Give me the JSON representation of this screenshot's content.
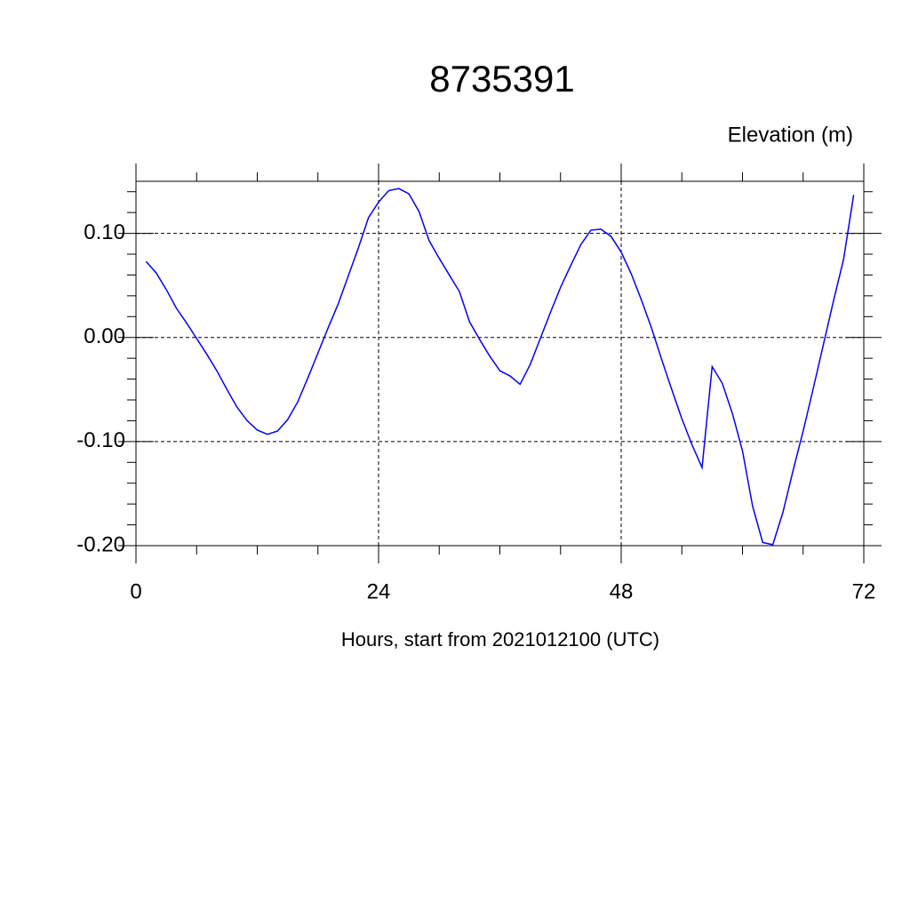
{
  "chart_data": {
    "type": "line",
    "title": "8735391",
    "subtitle": "Elevation (m)",
    "x_label": "Hours, start from 2021012100 (UTC)",
    "x": [
      1,
      2,
      3,
      4,
      5,
      6,
      7,
      8,
      9,
      10,
      11,
      12,
      13,
      14,
      15,
      16,
      17,
      18,
      19,
      20,
      21,
      22,
      23,
      24,
      25,
      26,
      27,
      28,
      29,
      30,
      31,
      32,
      33,
      34,
      35,
      36,
      37,
      38,
      39,
      40,
      41,
      42,
      43,
      44,
      45,
      46,
      47,
      48,
      49,
      50,
      51,
      52,
      53,
      54,
      55,
      56,
      57,
      58,
      59,
      60,
      61,
      62,
      63,
      64,
      65,
      66,
      67,
      68,
      69,
      70,
      71
    ],
    "series": [
      {
        "color": "#0000ff",
        "values": [
          0.073,
          0.062,
          0.046,
          0.028,
          0.014,
          -0.001,
          -0.016,
          -0.032,
          -0.05,
          -0.067,
          -0.08,
          -0.089,
          -0.093,
          -0.09,
          -0.079,
          -0.062,
          -0.039,
          -0.015,
          0.009,
          0.032,
          0.059,
          0.086,
          0.115,
          0.13,
          0.141,
          0.143,
          0.138,
          0.121,
          0.093,
          0.076,
          0.06,
          0.044,
          0.015,
          -0.002,
          -0.018,
          -0.032,
          -0.037,
          -0.045,
          -0.026,
          -0.001,
          0.024,
          0.048,
          0.069,
          0.089,
          0.103,
          0.104,
          0.097,
          0.082,
          0.061,
          0.036,
          0.009,
          -0.021,
          -0.05,
          -0.078,
          -0.103,
          -0.125,
          -0.028,
          -0.044,
          -0.073,
          -0.109,
          -0.162,
          -0.197,
          -0.199,
          -0.168,
          -0.128,
          -0.09,
          -0.049,
          -0.007,
          0.035,
          0.075,
          0.137
        ]
      }
    ],
    "xlim": [
      0,
      72
    ],
    "xticks": [
      0,
      24,
      48,
      72
    ],
    "xminorticks": [
      6,
      12,
      18,
      30,
      36,
      42,
      54,
      60,
      66
    ],
    "ylim": [
      -0.2,
      0.15
    ],
    "yticks": [
      {
        "value": -0.2,
        "label": "-0.20"
      },
      {
        "value": -0.1,
        "label": "-0.10"
      },
      {
        "value": 0,
        "label": "0.00"
      },
      {
        "value": 0.1,
        "label": "0.10"
      }
    ],
    "yminorticks": [
      -0.18,
      -0.16,
      -0.14,
      -0.12,
      -0.08,
      -0.06,
      -0.04,
      -0.02,
      0.02,
      0.04,
      0.06,
      0.08,
      0.12,
      0.14
    ],
    "grid": true
  }
}
